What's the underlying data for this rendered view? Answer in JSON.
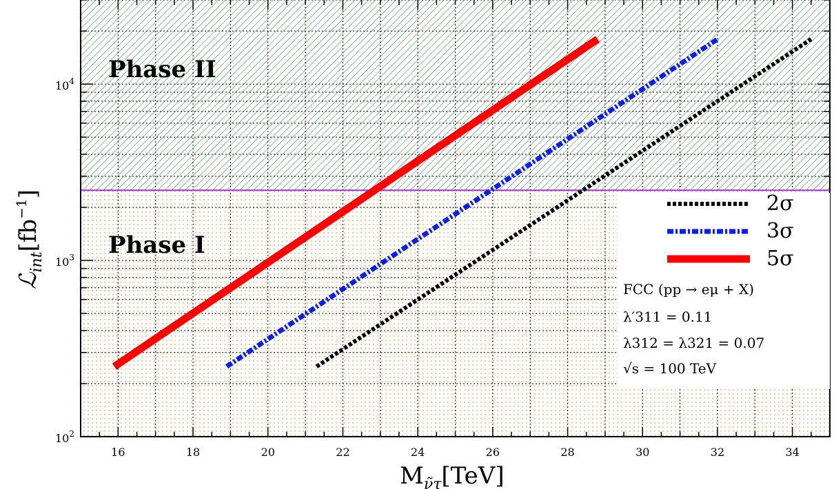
{
  "chart_data": {
    "type": "line",
    "xlabel": "M",
    "xlabel_subscript": "ν̃τ",
    "xlabel_unit": "[TeV]",
    "ylabel": "ℒ",
    "ylabel_subscript": "int",
    "ylabel_unit": "[fb",
    "ylabel_unit_sup": "−1",
    "ylabel_unit_close": "]",
    "xlim": [
      15,
      35
    ],
    "ylim": [
      100,
      30000
    ],
    "yscale": "log",
    "grid": true,
    "x_ticks": [
      "16",
      "18",
      "20",
      "22",
      "24",
      "26",
      "28",
      "30",
      "32",
      "34"
    ],
    "y_ticks": [
      {
        "value": 100,
        "base": "10",
        "exp": "2"
      },
      {
        "value": 1000,
        "base": "10",
        "exp": "3"
      },
      {
        "value": 10000,
        "base": "10",
        "exp": "4"
      }
    ],
    "threshold": {
      "value": 2500,
      "color": "#9933cc"
    },
    "regions": [
      {
        "label": "Phase II",
        "hatch_color": "#2e7d4f"
      },
      {
        "label": "Phase I",
        "dot_color": "#e8c8a0"
      }
    ],
    "series": [
      {
        "name": "2σ",
        "color": "#000000",
        "style": "dotted",
        "x": [
          21.3,
          34.5
        ],
        "y": [
          250,
          18000
        ]
      },
      {
        "name": "3σ",
        "color": "#0a1ee6",
        "style": "dashdot",
        "x": [
          18.9,
          32.0
        ],
        "y": [
          250,
          18000
        ]
      },
      {
        "name": "5σ",
        "color": "#ff0000",
        "style": "solid",
        "x": [
          15.9,
          28.8
        ],
        "y": [
          250,
          18000
        ]
      }
    ],
    "legend_position": "right",
    "annotations": [
      "FCC (pp → eμ + X)",
      "λ′311 = 0.11",
      "λ312 = λ321 = 0.07",
      "√s = 100 TeV"
    ]
  }
}
